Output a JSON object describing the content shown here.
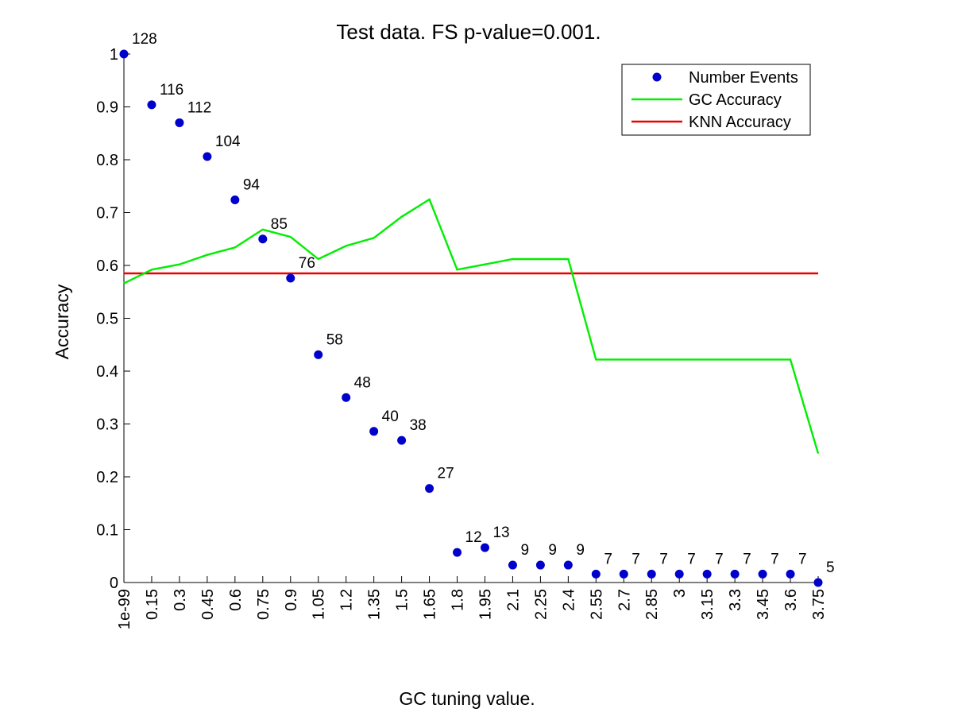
{
  "chart_data": {
    "type": "line",
    "title": "Test data. FS p-value=0.001.",
    "xlabel": "GC tuning value.",
    "ylabel": "Accuracy",
    "ylim": [
      0,
      1
    ],
    "yticks": [
      "0",
      "0.1",
      "0.2",
      "0.3",
      "0.4",
      "0.5",
      "0.6",
      "0.7",
      "0.8",
      "0.9",
      "1"
    ],
    "categories": [
      "1e-99",
      "0.15",
      "0.3",
      "0.45",
      "0.6",
      "0.75",
      "0.9",
      "1.05",
      "1.2",
      "1.35",
      "1.5",
      "1.65",
      "1.8",
      "1.95",
      "2.1",
      "2.25",
      "2.4",
      "2.55",
      "2.7",
      "2.85",
      "3",
      "3.15",
      "3.3",
      "3.45",
      "3.6",
      "3.75"
    ],
    "legend": {
      "position": "top-right"
    },
    "series": [
      {
        "name": "Number Events",
        "kind": "scatter",
        "color": "#0000cc",
        "values": [
          1.0,
          0.904,
          0.87,
          0.806,
          0.724,
          0.65,
          0.576,
          0.431,
          0.35,
          0.286,
          0.269,
          0.178,
          0.057,
          0.066,
          0.033,
          0.033,
          0.033,
          0.016,
          0.016,
          0.016,
          0.016,
          0.016,
          0.016,
          0.016,
          0.016,
          0.0
        ],
        "labels": [
          "128",
          "116",
          "112",
          "104",
          "94",
          "85",
          "76",
          "58",
          "48",
          "40",
          "38",
          "27",
          "12",
          "13",
          "9",
          "9",
          "9",
          "7",
          "7",
          "7",
          "7",
          "7",
          "7",
          "7",
          "7",
          "5"
        ]
      },
      {
        "name": "GC Accuracy",
        "kind": "line",
        "color": "#00ee00",
        "values": [
          0.566,
          0.592,
          0.602,
          0.62,
          0.634,
          0.668,
          0.654,
          0.612,
          0.637,
          0.652,
          0.692,
          0.725,
          0.592,
          0.602,
          0.612,
          0.612,
          0.612,
          0.422,
          0.422,
          0.422,
          0.422,
          0.422,
          0.422,
          0.422,
          0.422,
          0.244
        ]
      },
      {
        "name": "KNN Accuracy",
        "kind": "line",
        "color": "#ee0000",
        "values": [
          0.585,
          0.585,
          0.585,
          0.585,
          0.585,
          0.585,
          0.585,
          0.585,
          0.585,
          0.585,
          0.585,
          0.585,
          0.585,
          0.585,
          0.585,
          0.585,
          0.585,
          0.585,
          0.585,
          0.585,
          0.585,
          0.585,
          0.585,
          0.585,
          0.585,
          0.585
        ]
      }
    ]
  }
}
